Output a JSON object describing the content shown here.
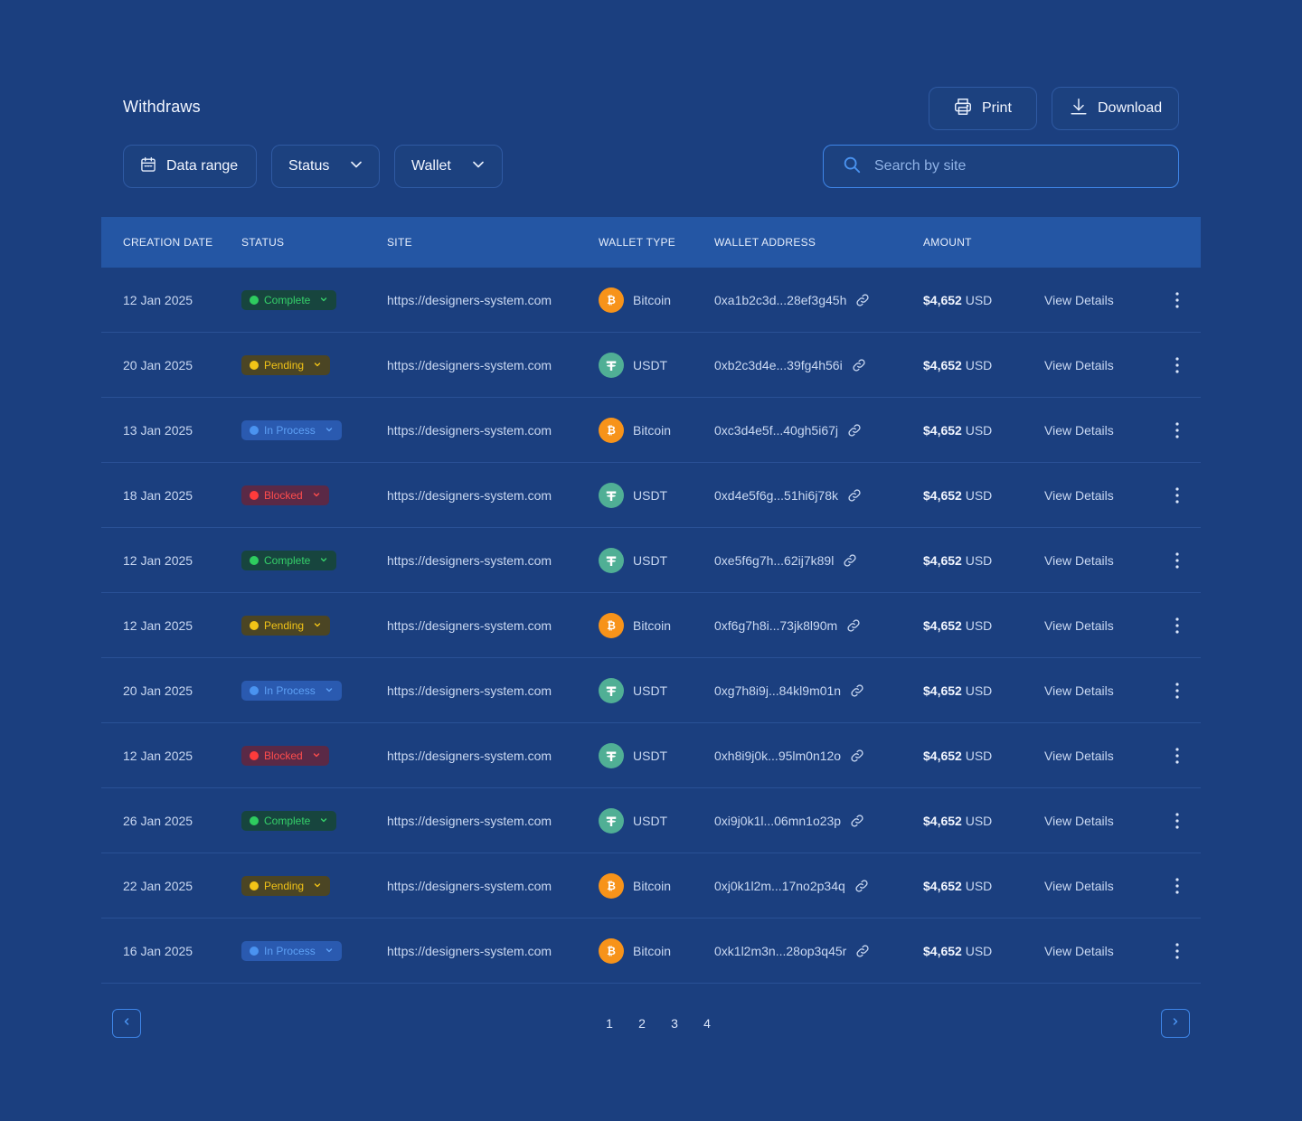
{
  "header": {
    "title": "Withdraws",
    "print_label": "Print",
    "download_label": "Download"
  },
  "filters": {
    "date_label": "Data range",
    "status_label": "Status",
    "wallet_label": "Wallet"
  },
  "search": {
    "placeholder": "Search by site"
  },
  "table": {
    "columns": [
      "CREATION DATE",
      "STATUS",
      "SITE",
      "WALLET TYPE",
      "WALLET ADDRESS",
      "AMOUNT"
    ],
    "rows": [
      {
        "date": "12 Jan 2025",
        "status": "Complete",
        "site": "https://designers-system.com",
        "wallet": "Bitcoin",
        "address": "0xa1b2c3d...28ef3g45h",
        "amount": "$4,652",
        "currency": "USD",
        "details": "View Details"
      },
      {
        "date": "20 Jan 2025",
        "status": "Pending",
        "site": "https://designers-system.com",
        "wallet": "USDT",
        "address": "0xb2c3d4e...39fg4h56i",
        "amount": "$4,652",
        "currency": "USD",
        "details": "View Details"
      },
      {
        "date": "13 Jan 2025",
        "status": "In Process",
        "site": "https://designers-system.com",
        "wallet": "Bitcoin",
        "address": "0xc3d4e5f...40gh5i67j",
        "amount": "$4,652",
        "currency": "USD",
        "details": "View Details"
      },
      {
        "date": "18 Jan 2025",
        "status": "Blocked",
        "site": "https://designers-system.com",
        "wallet": "USDT",
        "address": "0xd4e5f6g...51hi6j78k",
        "amount": "$4,652",
        "currency": "USD",
        "details": "View Details"
      },
      {
        "date": "12 Jan 2025",
        "status": "Complete",
        "site": "https://designers-system.com",
        "wallet": "USDT",
        "address": "0xe5f6g7h...62ij7k89l",
        "amount": "$4,652",
        "currency": "USD",
        "details": "View Details"
      },
      {
        "date": "12 Jan 2025",
        "status": "Pending",
        "site": "https://designers-system.com",
        "wallet": "Bitcoin",
        "address": "0xf6g7h8i...73jk8l90m",
        "amount": "$4,652",
        "currency": "USD",
        "details": "View Details"
      },
      {
        "date": "20 Jan 2025",
        "status": "In Process",
        "site": "https://designers-system.com",
        "wallet": "USDT",
        "address": "0xg7h8i9j...84kl9m01n",
        "amount": "$4,652",
        "currency": "USD",
        "details": "View Details"
      },
      {
        "date": "12 Jan 2025",
        "status": "Blocked",
        "site": "https://designers-system.com",
        "wallet": "USDT",
        "address": "0xh8i9j0k...95lm0n12o",
        "amount": "$4,652",
        "currency": "USD",
        "details": "View Details"
      },
      {
        "date": "26 Jan 2025",
        "status": "Complete",
        "site": "https://designers-system.com",
        "wallet": "USDT",
        "address": "0xi9j0k1l...06mn1o23p",
        "amount": "$4,652",
        "currency": "USD",
        "details": "View Details"
      },
      {
        "date": "22 Jan 2025",
        "status": "Pending",
        "site": "https://designers-system.com",
        "wallet": "Bitcoin",
        "address": "0xj0k1l2m...17no2p34q",
        "amount": "$4,652",
        "currency": "USD",
        "details": "View Details"
      },
      {
        "date": "16 Jan 2025",
        "status": "In Process",
        "site": "https://designers-system.com",
        "wallet": "Bitcoin",
        "address": "0xk1l2m3n...28op3q45r",
        "amount": "$4,652",
        "currency": "USD",
        "details": "View Details"
      }
    ]
  },
  "pagination": {
    "pages": [
      "1",
      "2",
      "3",
      "4"
    ]
  },
  "colors": {
    "background": "#1b3f7f",
    "header_bg": "#2456a4",
    "accent": "#3f86e8",
    "complete": "#2ecc5f",
    "pending": "#f2c417",
    "in_process": "#4a93f0",
    "blocked": "#ff3b3b",
    "bitcoin": "#f7931a",
    "usdt": "#50af95"
  },
  "icons": {
    "print": "printer-icon",
    "download": "download-icon",
    "date": "calendar-icon",
    "search": "search-icon",
    "link": "link-icon",
    "more": "more-vertical-icon"
  }
}
